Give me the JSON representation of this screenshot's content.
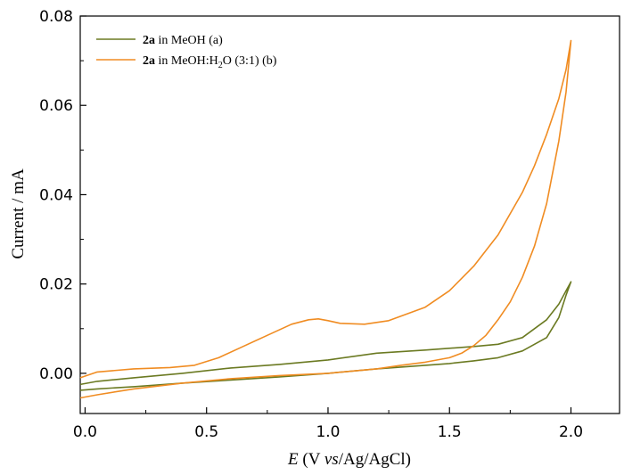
{
  "chart_data": {
    "type": "line",
    "title": "",
    "xlabel": {
      "italic": "E",
      "pre": " (V ",
      "mid_italic": "vs",
      "post": "/Ag/AgCl)"
    },
    "ylabel": "Current / mA",
    "xlim": [
      -0.02,
      2.2
    ],
    "ylim": [
      -0.009,
      0.08
    ],
    "xticks": [
      "0.0",
      "0.5",
      "1.0",
      "1.5",
      "2.0"
    ],
    "xtick_values": [
      0.0,
      0.5,
      1.0,
      1.5,
      2.0
    ],
    "yticks": [
      "0.00",
      "0.02",
      "0.04",
      "0.06",
      "0.08"
    ],
    "ytick_values": [
      0.0,
      0.02,
      0.04,
      0.06,
      0.08
    ],
    "legend_position": "top-left",
    "series": [
      {
        "name": "2a in MeOH (a)",
        "legend": {
          "bold": "2a",
          "text": " in MeOH (a)"
        },
        "color": "#6b7a22",
        "x": [
          -0.02,
          0.05,
          0.2,
          0.4,
          0.6,
          0.8,
          1.0,
          1.2,
          1.4,
          1.6,
          1.7,
          1.8,
          1.9,
          1.95,
          2.0,
          1.98,
          1.95,
          1.9,
          1.8,
          1.7,
          1.6,
          1.5,
          1.4,
          1.2,
          1.0,
          0.8,
          0.6,
          0.4,
          0.2,
          0.05,
          -0.02
        ],
        "y": [
          -0.0025,
          -0.0018,
          -0.001,
          0.0,
          0.0012,
          0.002,
          0.003,
          0.0045,
          0.0052,
          0.006,
          0.0065,
          0.008,
          0.012,
          0.0155,
          0.0205,
          0.0175,
          0.0125,
          0.008,
          0.005,
          0.0035,
          0.0028,
          0.0022,
          0.0018,
          0.001,
          0.0,
          -0.0008,
          -0.0015,
          -0.0022,
          -0.003,
          -0.0035,
          -0.0038
        ]
      },
      {
        "name": "2a in MeOH:H2O (3:1) (b)",
        "legend": {
          "bold": "2a",
          "text": " in MeOH:H",
          "sub": "2",
          "tail": "O (3:1) (b)"
        },
        "color": "#f08c22",
        "x": [
          -0.02,
          0.05,
          0.2,
          0.35,
          0.45,
          0.55,
          0.65,
          0.75,
          0.85,
          0.92,
          0.96,
          1.0,
          1.05,
          1.15,
          1.25,
          1.4,
          1.5,
          1.6,
          1.7,
          1.8,
          1.85,
          1.9,
          1.95,
          1.98,
          2.0,
          1.98,
          1.95,
          1.9,
          1.85,
          1.8,
          1.75,
          1.7,
          1.65,
          1.6,
          1.55,
          1.5,
          1.4,
          1.3,
          1.2,
          1.0,
          0.8,
          0.6,
          0.4,
          0.2,
          0.05,
          -0.02
        ],
        "y": [
          -0.001,
          0.0003,
          0.001,
          0.0013,
          0.0018,
          0.0035,
          0.006,
          0.0085,
          0.011,
          0.012,
          0.0122,
          0.0118,
          0.0112,
          0.011,
          0.0118,
          0.0148,
          0.0185,
          0.024,
          0.031,
          0.0405,
          0.0465,
          0.0535,
          0.0615,
          0.068,
          0.0745,
          0.063,
          0.052,
          0.038,
          0.0285,
          0.0215,
          0.016,
          0.012,
          0.0085,
          0.0062,
          0.0045,
          0.0035,
          0.0025,
          0.0018,
          0.001,
          0.0,
          -0.0005,
          -0.0012,
          -0.0022,
          -0.0035,
          -0.0048,
          -0.0055
        ]
      }
    ]
  }
}
